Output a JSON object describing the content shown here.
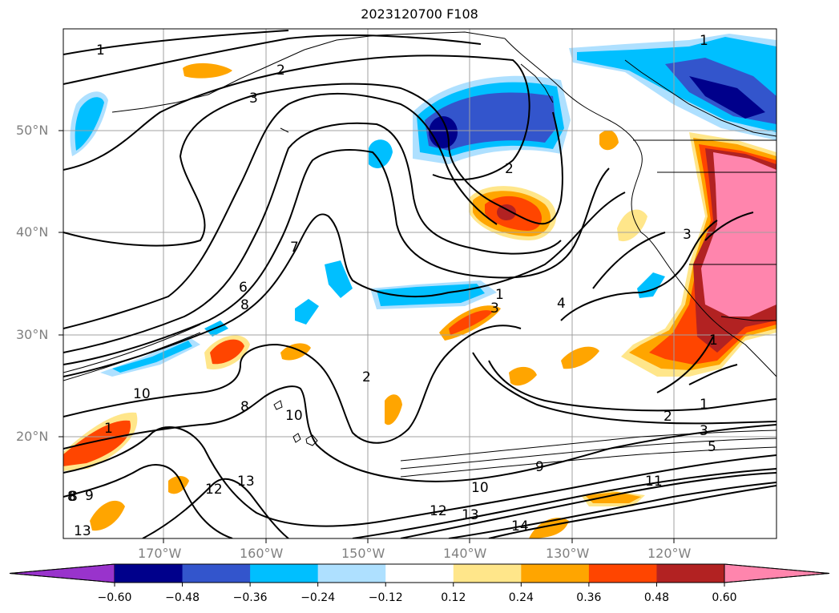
{
  "title": "2023120700 F108",
  "lat_labels": [
    "50°N",
    "40°N",
    "30°N",
    "20°N"
  ],
  "lon_labels": [
    "170°W",
    "160°W",
    "150°W",
    "140°W",
    "130°W",
    "120°W"
  ],
  "colorbar": {
    "colors": [
      "#9933cc",
      "#00008b",
      "#3355cc",
      "#00bfff",
      "#aee0ff",
      "#ffffff",
      "#ffe68a",
      "#ffa500",
      "#ff4500",
      "#b22222",
      "#ff85ad"
    ],
    "tick_labels": [
      "-0.60",
      "-0.48",
      "-0.36",
      "-0.24",
      "-0.12",
      "0.12",
      "0.24",
      "0.36",
      "0.48",
      "0.60"
    ]
  },
  "contour_labels": [
    "1",
    "2",
    "3",
    "1",
    "2",
    "3",
    "7",
    "6",
    "8",
    "2",
    "1",
    "3",
    "4",
    "1",
    "1",
    "2",
    "3",
    "5",
    "10",
    "8",
    "8",
    "10",
    "1",
    "9",
    "11",
    "10",
    "12",
    "13",
    "14",
    "12",
    "13",
    "8",
    "9",
    "13"
  ],
  "colors": {
    "grid": "#a0a0a0",
    "tick_text": "#808080"
  }
}
